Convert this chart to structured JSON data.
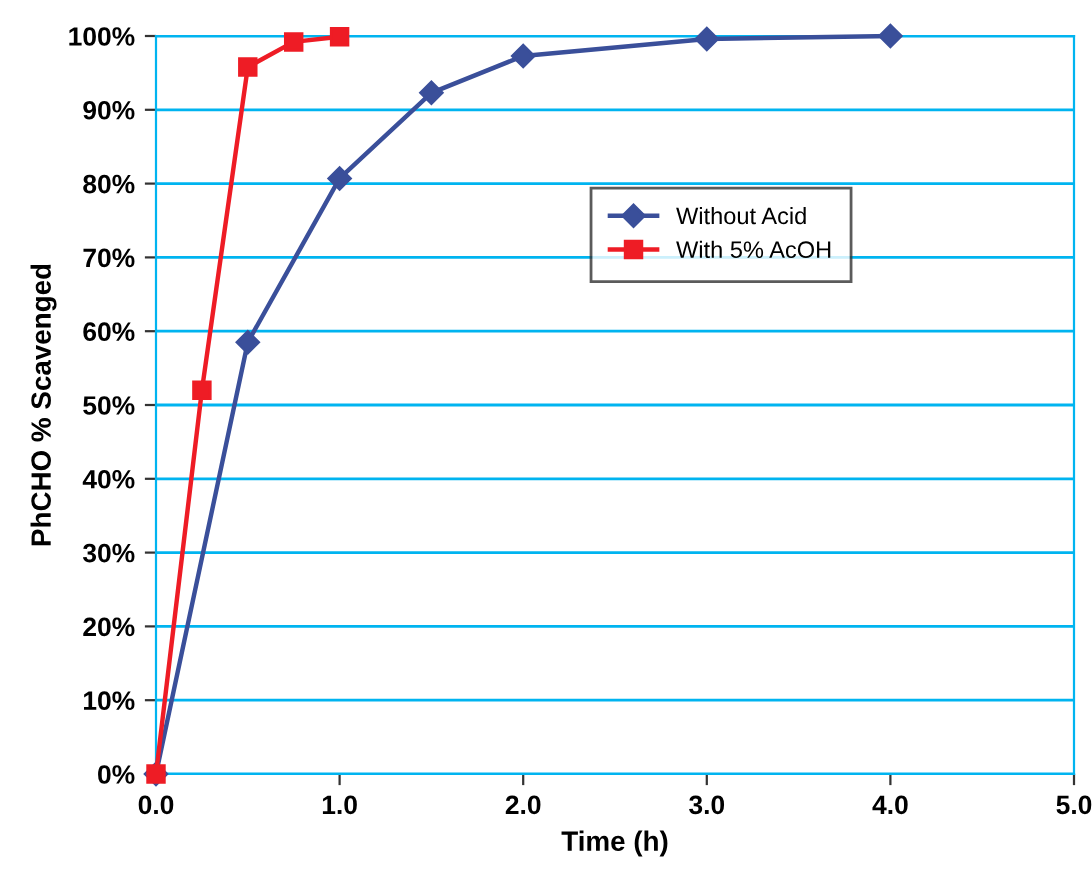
{
  "chart_data": {
    "type": "line",
    "xlabel": "Time (h)",
    "ylabel": "PhCHO % Scavenged",
    "xlim": [
      0,
      5
    ],
    "xticks": [
      {
        "value": 0,
        "label": "0.0"
      },
      {
        "value": 1,
        "label": "1.0"
      },
      {
        "value": 2,
        "label": "2.0"
      },
      {
        "value": 3,
        "label": "3.0"
      },
      {
        "value": 4,
        "label": "4.0"
      },
      {
        "value": 5,
        "label": "5.0"
      }
    ],
    "ylim": [
      0,
      100
    ],
    "yticks": [
      {
        "value": 0,
        "label": "0%"
      },
      {
        "value": 10,
        "label": "10%"
      },
      {
        "value": 20,
        "label": "20%"
      },
      {
        "value": 30,
        "label": "30%"
      },
      {
        "value": 40,
        "label": "40%"
      },
      {
        "value": 50,
        "label": "50%"
      },
      {
        "value": 60,
        "label": "60%"
      },
      {
        "value": 70,
        "label": "70%"
      },
      {
        "value": 80,
        "label": "80%"
      },
      {
        "value": 90,
        "label": "90%"
      },
      {
        "value": 100,
        "label": "100%"
      }
    ],
    "grid": "y",
    "legend": "top right",
    "series": [
      {
        "name": "Without Acid",
        "color": "#3a4f9a",
        "marker": "diamond",
        "x": [
          0,
          0.5,
          1,
          1.5,
          2,
          3,
          4
        ],
        "values": [
          0,
          58.5,
          80.7,
          92.3,
          97.3,
          99.6,
          100
        ]
      },
      {
        "name": "With 5% AcOH",
        "color": "#ee1c25",
        "marker": "square",
        "x": [
          0,
          0.25,
          0.5,
          0.75,
          1
        ],
        "values": [
          0,
          52,
          95.8,
          99.2,
          99.9
        ]
      }
    ]
  }
}
